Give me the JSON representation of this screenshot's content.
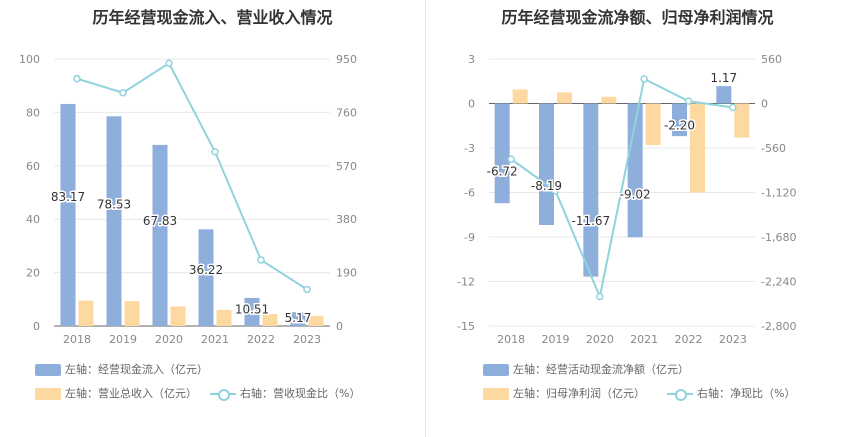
{
  "colors": {
    "bar_primary": "#8eaedc",
    "bar_secondary": "#fdd9a1",
    "line": "#8fd3dc",
    "grid": "#e8e8e8",
    "axis_text": "#888888"
  },
  "chart_data": [
    {
      "type": "bar",
      "title": "历年经营现金流入、营业收入情况",
      "categories": [
        "2018",
        "2019",
        "2020",
        "2021",
        "2022",
        "2023"
      ],
      "left_axis": {
        "ticks": [
          "0",
          "20",
          "40",
          "60",
          "80",
          "100"
        ],
        "ylim": [
          0,
          100
        ]
      },
      "right_axis": {
        "ticks": [
          "0",
          "190",
          "380",
          "570",
          "760",
          "950"
        ],
        "ylim": [
          0,
          950
        ]
      },
      "series": [
        {
          "name": "左轴：经营现金流入（亿元）",
          "axis": "left",
          "kind": "bar",
          "values": [
            83.17,
            78.53,
            67.83,
            36.22,
            10.51,
            5.17
          ],
          "labels": [
            "83.17",
            "78.53",
            "67.83",
            "36.22",
            "10.51",
            "5.17"
          ]
        },
        {
          "name": "左轴：营业总收入（亿元）",
          "axis": "left",
          "kind": "bar",
          "values": [
            9.5,
            9.3,
            7.3,
            6.0,
            4.5,
            3.8
          ]
        },
        {
          "name": "右轴：营收现金比（%）",
          "axis": "right",
          "kind": "line",
          "values": [
            880,
            830,
            935,
            620,
            235,
            130
          ]
        }
      ]
    },
    {
      "type": "bar",
      "title": "历年经营现金流净额、归母净利润情况",
      "categories": [
        "2018",
        "2019",
        "2020",
        "2021",
        "2022",
        "2023"
      ],
      "left_axis": {
        "ticks": [
          "-15",
          "-12",
          "-9",
          "-6",
          "-3",
          "0",
          "3"
        ],
        "ylim": [
          -15,
          3
        ]
      },
      "right_axis": {
        "ticks": [
          "-2,800",
          "-2,240",
          "-1,680",
          "-1,120",
          "-560",
          "0",
          "560"
        ],
        "ylim": [
          -2800,
          560
        ]
      },
      "series": [
        {
          "name": "左轴：经营活动现金流净额（亿元）",
          "axis": "left",
          "kind": "bar",
          "values": [
            -6.72,
            -8.19,
            -11.67,
            -9.02,
            -2.2,
            1.17
          ],
          "labels": [
            "-6.72",
            "-8.19",
            "-11.67",
            "-9.02",
            "-2.20",
            "1.17"
          ]
        },
        {
          "name": "左轴：归母净利润（亿元）",
          "axis": "left",
          "kind": "bar",
          "values": [
            0.95,
            0.75,
            0.45,
            -2.8,
            -6.0,
            -2.3
          ]
        },
        {
          "name": "右轴：净现比（%）",
          "axis": "right",
          "kind": "line",
          "values": [
            -700,
            -1100,
            -2430,
            310,
            30,
            -50
          ]
        }
      ]
    }
  ]
}
